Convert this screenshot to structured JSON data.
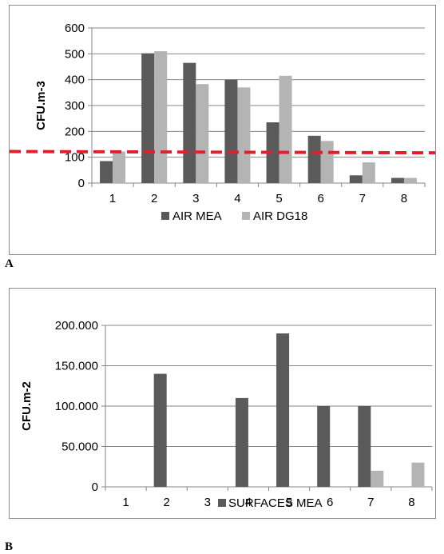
{
  "panels": [
    {
      "letter": "A"
    },
    {
      "letter": "B"
    }
  ],
  "colors": {
    "dark": "#5a5a5a",
    "light": "#b4b4b4",
    "threshold": "#e0212b",
    "axis": "#868686"
  },
  "chart_data": [
    {
      "type": "bar",
      "panel": "A",
      "categories": [
        "1",
        "2",
        "3",
        "4",
        "5",
        "6",
        "7",
        "8"
      ],
      "series": [
        {
          "name": "AIR MEA",
          "values": [
            85,
            502,
            465,
            400,
            235,
            183,
            30,
            20
          ]
        },
        {
          "name": "AIR DG18",
          "values": [
            122,
            510,
            383,
            370,
            415,
            163,
            80,
            20
          ]
        }
      ],
      "threshold": {
        "values": [
          122,
          117
        ],
        "style": "dashed",
        "color": "red"
      },
      "ylabel": "CFU.m-3",
      "ylim": [
        0,
        600
      ],
      "yticks": [
        "0",
        "100",
        "200",
        "300",
        "400",
        "500",
        "600"
      ],
      "grid": "horizontal",
      "legend": "bottom"
    },
    {
      "type": "bar",
      "panel": "B",
      "categories": [
        "1",
        "2",
        "3",
        "4",
        "5",
        "6",
        "7",
        "8"
      ],
      "series": [
        {
          "name": "SURFACES MEA",
          "values": [
            0,
            140,
            0,
            110,
            190,
            100,
            100,
            0
          ]
        },
        {
          "values": [
            0,
            0,
            0,
            0,
            0,
            0,
            20,
            30
          ]
        }
      ],
      "ylabel": "CFU.m-2",
      "ylim": [
        0,
        200
      ],
      "yticks": [
        "0",
        "50.000",
        "100.000",
        "150.000",
        "200.000"
      ],
      "grid": "horizontal",
      "legend": "bottom"
    }
  ]
}
